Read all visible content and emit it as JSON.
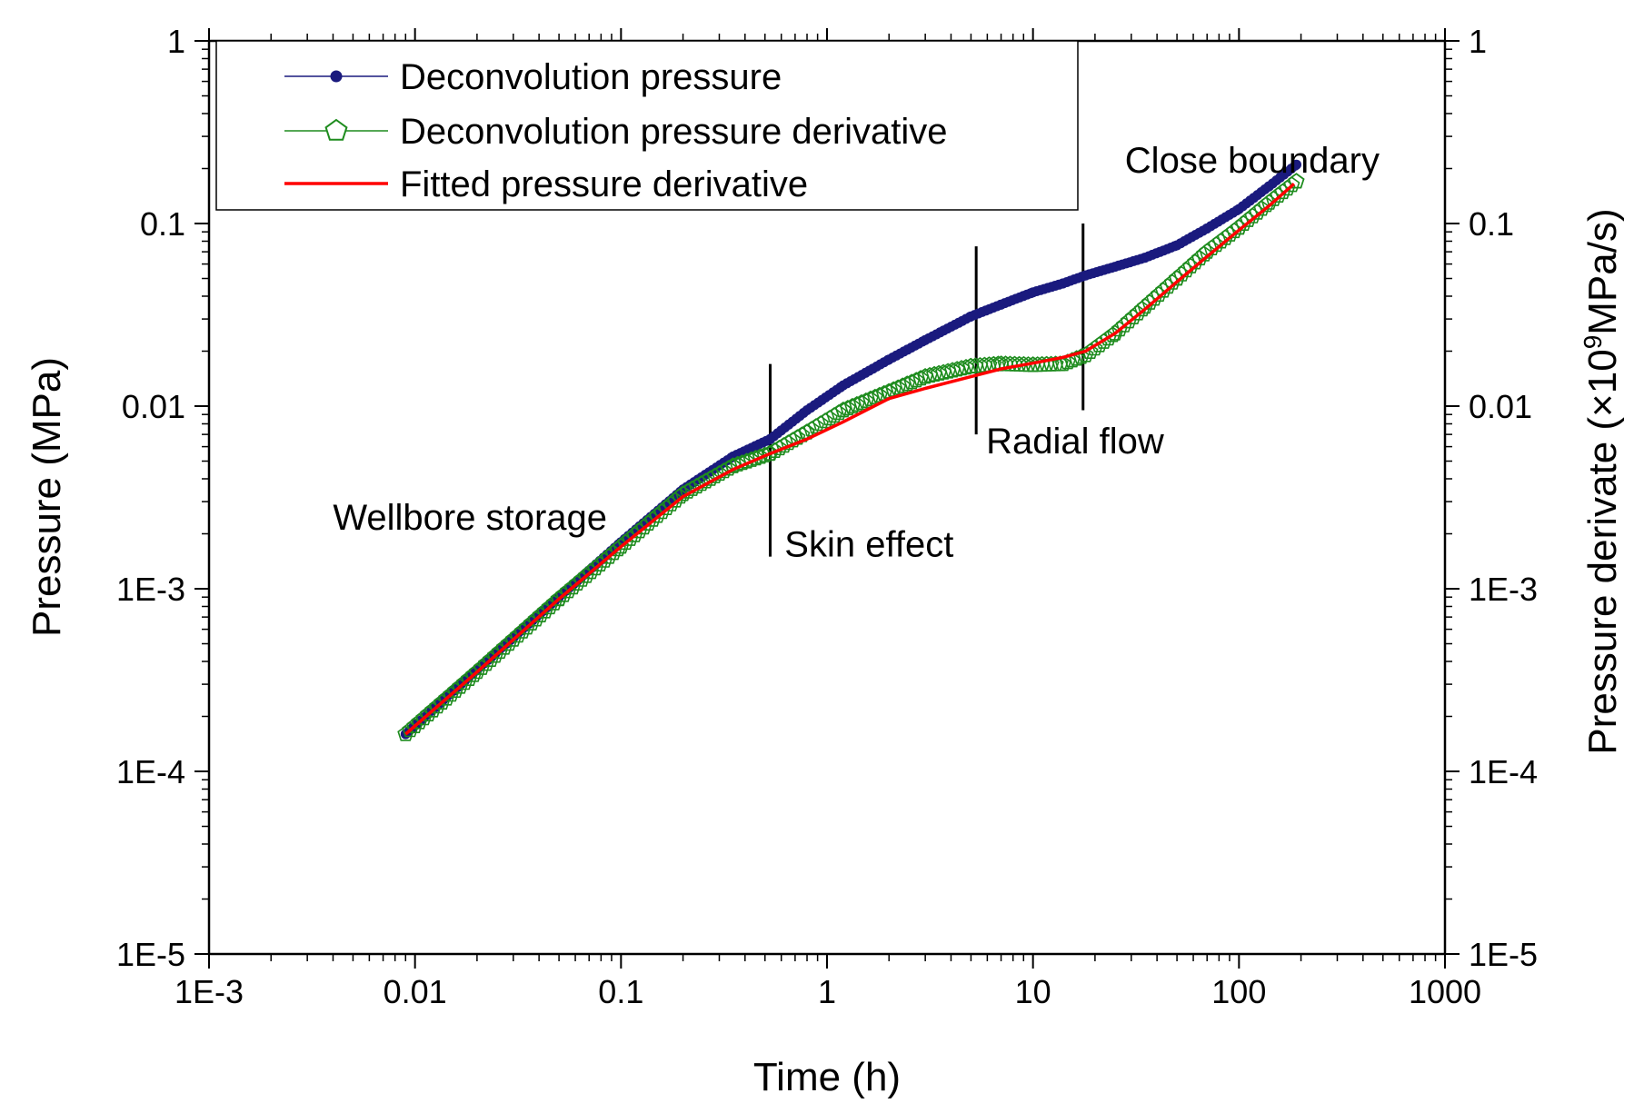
{
  "chart_data": {
    "type": "scatter",
    "scale": "log-log",
    "xlabel": "Time (h)",
    "ylabel_left": "Pressure (MPa)",
    "ylabel_right_prefix": "Pressure derivate (×10",
    "ylabel_right_sup": "9",
    "ylabel_right_suffix": "MPa/s)",
    "xlim": [
      0.001,
      1000
    ],
    "ylim": [
      1e-05,
      1
    ],
    "x_ticks": [
      {
        "value": 0.001,
        "label": "1E-3"
      },
      {
        "value": 0.01,
        "label": "0.01"
      },
      {
        "value": 0.1,
        "label": "0.1"
      },
      {
        "value": 1,
        "label": "1"
      },
      {
        "value": 10,
        "label": "10"
      },
      {
        "value": 100,
        "label": "100"
      },
      {
        "value": 1000,
        "label": "1000"
      }
    ],
    "y_ticks_left": [
      {
        "value": 1,
        "label": "1"
      },
      {
        "value": 0.1,
        "label": "0.1"
      },
      {
        "value": 0.01,
        "label": "0.01"
      },
      {
        "value": 0.001,
        "label": "1E-3"
      },
      {
        "value": 0.0001,
        "label": "1E-4"
      },
      {
        "value": 1e-05,
        "label": "1E-5"
      }
    ],
    "y_ticks_right": [
      {
        "value": 1,
        "label": "1"
      },
      {
        "value": 0.1,
        "label": "0.1"
      },
      {
        "value": 0.01,
        "label": "0.01"
      },
      {
        "value": 0.001,
        "label": "1E-3"
      },
      {
        "value": 0.0001,
        "label": "1E-4"
      },
      {
        "value": 1e-05,
        "label": "1E-5"
      }
    ],
    "legend_position": "top-left",
    "series": [
      {
        "name": "Deconvolution pressure",
        "color": "#1a1a7e",
        "marker": "filled-circle",
        "x": [
          0.009,
          0.02,
          0.05,
          0.1,
          0.2,
          0.35,
          0.53,
          0.8,
          1.2,
          2,
          3,
          5,
          7,
          10,
          14,
          18,
          25,
          35,
          50,
          70,
          100,
          140,
          190
        ],
        "y": [
          0.00016,
          0.00036,
          0.0009,
          0.0018,
          0.0035,
          0.0053,
          0.0066,
          0.0095,
          0.013,
          0.018,
          0.023,
          0.031,
          0.036,
          0.042,
          0.047,
          0.052,
          0.058,
          0.065,
          0.076,
          0.094,
          0.12,
          0.16,
          0.21
        ]
      },
      {
        "name": "Deconvolution pressure derivative",
        "color": "#1e8c1e",
        "marker": "open-pentagon",
        "x": [
          0.009,
          0.02,
          0.05,
          0.1,
          0.2,
          0.35,
          0.53,
          0.8,
          1.2,
          2,
          3,
          5,
          7,
          10,
          14,
          18,
          25,
          35,
          50,
          70,
          100,
          140,
          190
        ],
        "y": [
          0.00016,
          0.00035,
          0.00088,
          0.0017,
          0.0033,
          0.0047,
          0.0055,
          0.0072,
          0.0095,
          0.012,
          0.0145,
          0.0165,
          0.017,
          0.0168,
          0.017,
          0.019,
          0.025,
          0.035,
          0.05,
          0.07,
          0.095,
          0.13,
          0.17
        ]
      },
      {
        "name": "Fitted pressure derivative",
        "color": "#ff0000",
        "marker": "line",
        "x": [
          0.009,
          0.02,
          0.05,
          0.1,
          0.2,
          0.35,
          0.53,
          0.8,
          1.2,
          2,
          3,
          5,
          7,
          10,
          14,
          18,
          25,
          35,
          50,
          70,
          100,
          140,
          185
        ],
        "y": [
          0.00016,
          0.00035,
          0.00088,
          0.0017,
          0.0032,
          0.0045,
          0.0055,
          0.0066,
          0.0082,
          0.011,
          0.0125,
          0.0145,
          0.016,
          0.0172,
          0.0185,
          0.02,
          0.025,
          0.034,
          0.048,
          0.066,
          0.092,
          0.125,
          0.165
        ]
      }
    ],
    "boundary_lines": [
      {
        "x": 0.53,
        "y_low": 0.0015,
        "y_high": 0.017
      },
      {
        "x": 5.3,
        "y_low": 0.007,
        "y_high": 0.075
      },
      {
        "x": 17.5,
        "y_low": 0.0095,
        "y_high": 0.1
      }
    ],
    "annotations": [
      {
        "text": "Wellbore storage",
        "x": 0.0185,
        "y": 0.0021
      },
      {
        "text": "Skin effect",
        "x": 1.6,
        "y": 0.0015
      },
      {
        "text": "Radial flow",
        "x": 16,
        "y": 0.0055
      },
      {
        "text": "Close boundary",
        "x": 116,
        "y": 0.19
      }
    ]
  }
}
